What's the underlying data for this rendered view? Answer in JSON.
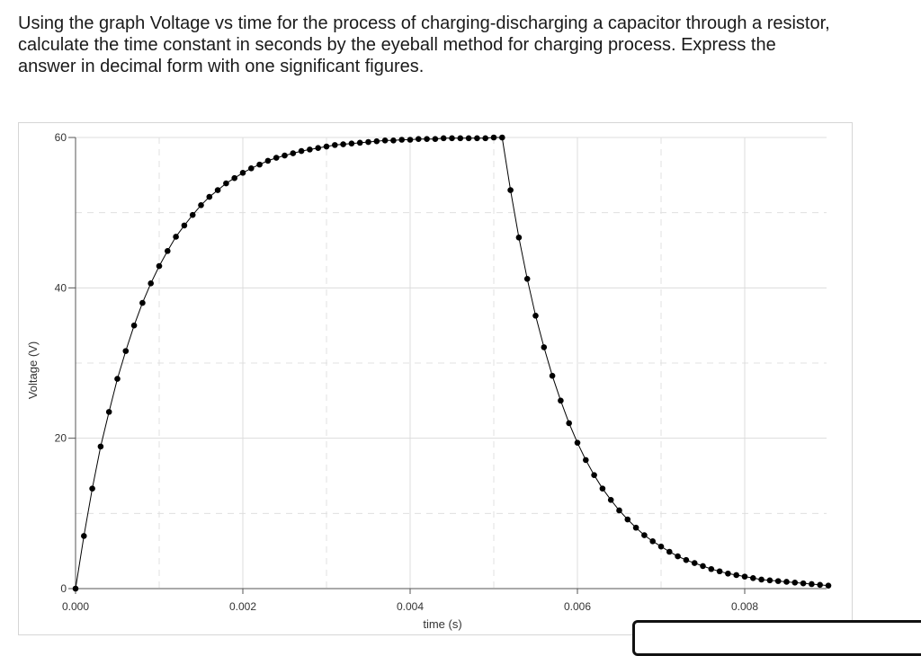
{
  "question": {
    "lines": [
      "Using the graph Voltage vs time for the process of charging-discharging a capacitor through a resistor,",
      "calculate the time constant in seconds by the eyeball method for charging process. Express the",
      "answer in decimal form with one significant figures."
    ]
  },
  "chart_data": {
    "type": "scatter",
    "title": "",
    "xlabel": "time (s)",
    "ylabel": "Voltage (V)",
    "xlim": [
      0,
      0.009
    ],
    "ylim": [
      0,
      60
    ],
    "x_ticks": [
      "0.000",
      "0.002",
      "0.004",
      "0.006",
      "0.008"
    ],
    "y_ticks": [
      "0",
      "20",
      "40",
      "60"
    ],
    "grid": true,
    "legend": "none",
    "marker_color": "#000000",
    "line_color": "#000000",
    "series": [
      {
        "values": [
          [
            0.0,
            0.0
          ],
          [
            0.0001,
            7.0
          ],
          [
            0.0002,
            13.3
          ],
          [
            0.0003,
            18.9
          ],
          [
            0.0004,
            23.5
          ],
          [
            0.0005,
            27.9
          ],
          [
            0.0006,
            31.6
          ],
          [
            0.0007,
            35.0
          ],
          [
            0.0008,
            38.0
          ],
          [
            0.0009,
            40.6
          ],
          [
            0.001,
            42.9
          ],
          [
            0.0011,
            44.9
          ],
          [
            0.0012,
            46.8
          ],
          [
            0.0013,
            48.3
          ],
          [
            0.0014,
            49.7
          ],
          [
            0.0015,
            51.0
          ],
          [
            0.0016,
            52.1
          ],
          [
            0.0017,
            53.0
          ],
          [
            0.0018,
            53.9
          ],
          [
            0.0019,
            54.6
          ],
          [
            0.002,
            55.3
          ],
          [
            0.0021,
            55.9
          ],
          [
            0.0022,
            56.4
          ],
          [
            0.0023,
            56.9
          ],
          [
            0.0024,
            57.3
          ],
          [
            0.0025,
            57.6
          ],
          [
            0.0026,
            57.9
          ],
          [
            0.0027,
            58.2
          ],
          [
            0.0028,
            58.4
          ],
          [
            0.0029,
            58.6
          ],
          [
            0.003,
            58.8
          ],
          [
            0.0031,
            59.0
          ],
          [
            0.0032,
            59.1
          ],
          [
            0.0033,
            59.2
          ],
          [
            0.0034,
            59.3
          ],
          [
            0.0035,
            59.4
          ],
          [
            0.0036,
            59.5
          ],
          [
            0.0037,
            59.6
          ],
          [
            0.0038,
            59.6
          ],
          [
            0.0039,
            59.7
          ],
          [
            0.004,
            59.7
          ],
          [
            0.0041,
            59.8
          ],
          [
            0.0042,
            59.8
          ],
          [
            0.0043,
            59.8
          ],
          [
            0.0044,
            59.9
          ],
          [
            0.0045,
            59.9
          ],
          [
            0.0046,
            59.9
          ],
          [
            0.0047,
            59.9
          ],
          [
            0.0048,
            59.9
          ],
          [
            0.0049,
            59.9
          ],
          [
            0.005,
            60.0
          ],
          [
            0.0051,
            60.0
          ],
          [
            0.0052,
            53.0
          ],
          [
            0.0053,
            46.7
          ],
          [
            0.0054,
            41.2
          ],
          [
            0.0055,
            36.3
          ],
          [
            0.0056,
            32.1
          ],
          [
            0.0057,
            28.3
          ],
          [
            0.0058,
            25.0
          ],
          [
            0.0059,
            22.0
          ],
          [
            0.006,
            19.4
          ],
          [
            0.0061,
            17.1
          ],
          [
            0.0062,
            15.1
          ],
          [
            0.0063,
            13.3
          ],
          [
            0.0064,
            11.8
          ],
          [
            0.0065,
            10.4
          ],
          [
            0.0066,
            9.2
          ],
          [
            0.0067,
            8.1
          ],
          [
            0.0068,
            7.1
          ],
          [
            0.0069,
            6.3
          ],
          [
            0.007,
            5.6
          ],
          [
            0.0071,
            4.9
          ],
          [
            0.0072,
            4.3
          ],
          [
            0.0073,
            3.8
          ],
          [
            0.0074,
            3.4
          ],
          [
            0.0075,
            3.0
          ],
          [
            0.0076,
            2.6
          ],
          [
            0.0077,
            2.3
          ],
          [
            0.0078,
            2.0
          ],
          [
            0.0079,
            1.8
          ],
          [
            0.008,
            1.6
          ],
          [
            0.0081,
            1.4
          ],
          [
            0.0082,
            1.2
          ],
          [
            0.0083,
            1.1
          ],
          [
            0.0084,
            1.0
          ],
          [
            0.0085,
            0.9
          ],
          [
            0.0086,
            0.8
          ],
          [
            0.0087,
            0.7
          ],
          [
            0.0088,
            0.6
          ],
          [
            0.0089,
            0.5
          ],
          [
            0.009,
            0.4
          ]
        ]
      }
    ]
  }
}
